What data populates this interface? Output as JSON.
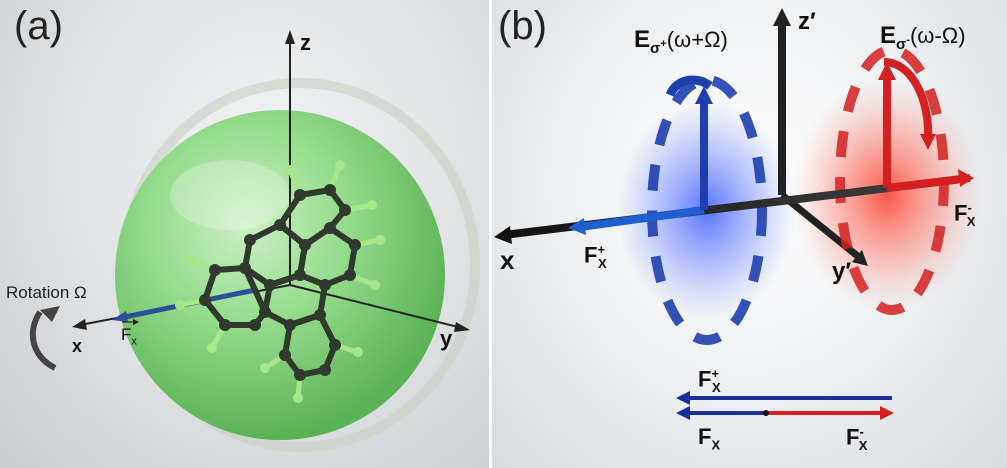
{
  "panel_a": {
    "label": "(a)",
    "axis_z": "z",
    "axis_x": "x",
    "axis_y": "y",
    "rotation_label": "Rotation Ω",
    "force_label": "F",
    "force_sub": "x",
    "colors": {
      "sphere": "#7fd67a",
      "molecule": "#2f3a2c",
      "hydrogen": "#a8e68a",
      "force": "#2c4f9a"
    }
  },
  "panel_b": {
    "label": "(b)",
    "axis_z": "z′",
    "axis_x": "x",
    "axis_y": "y′",
    "e_plus": {
      "base": "E",
      "sub": "σ",
      "sup": "+",
      "paren": "(ω+Ω)"
    },
    "e_minus": {
      "base": "E",
      "sub": "σ",
      "sup": "-",
      "paren": "(ω-Ω)"
    },
    "f_plus_left": {
      "base": "F",
      "sub": "X",
      "sup": "+"
    },
    "f_minus_right": {
      "base": "F",
      "sub": "X",
      "sup": "-"
    },
    "legend": {
      "f_plus": {
        "base": "F",
        "sub": "X",
        "sup": "+"
      },
      "f_total": {
        "base": "F",
        "sub": "X"
      },
      "f_minus": {
        "base": "F",
        "sub": "X",
        "sup": "-"
      }
    },
    "colors": {
      "blue": "#1f3fb0",
      "red": "#d42020",
      "axis": "#222222"
    }
  }
}
